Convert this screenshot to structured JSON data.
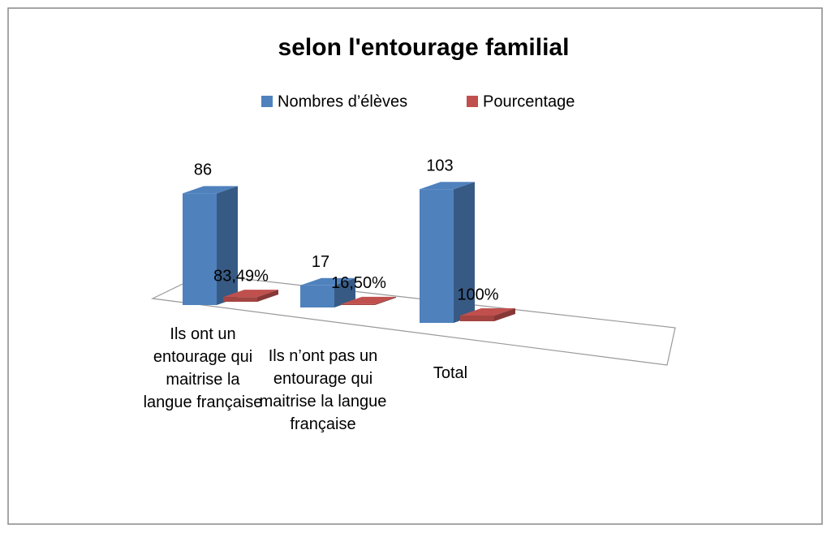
{
  "chart_data": {
    "type": "bar3d",
    "title": "selon l'entourage familial",
    "categories": [
      "Ils ont un entourage qui maitrise la langue française",
      "Ils n’ont pas un entourage qui maitrise la langue française",
      "Total"
    ],
    "series": [
      {
        "name": "Nombres d’élèves",
        "color": "#4f81bd",
        "values": [
          86,
          17,
          103
        ]
      },
      {
        "name": "Pourcentage",
        "color": "#c0504d",
        "values": [
          83.49,
          16.5,
          100
        ],
        "value_labels": [
          "83,49%",
          "16,50%",
          "100%"
        ]
      }
    ],
    "legend": "top"
  }
}
